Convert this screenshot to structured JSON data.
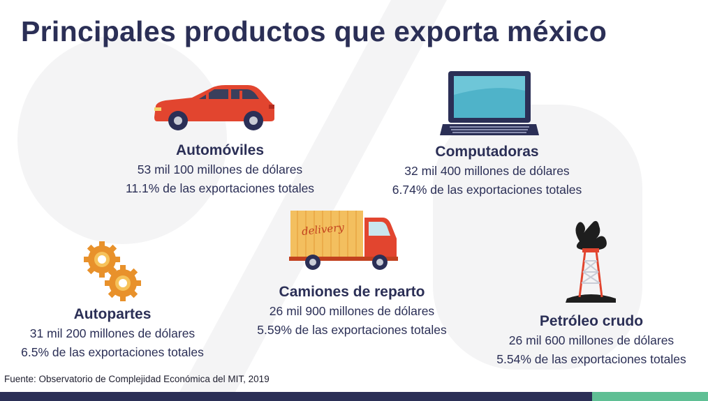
{
  "title": "Principales productos que exporta méxico",
  "products": [
    {
      "name": "Automóviles",
      "value": "53 mil 100 millones de dólares",
      "share": "11.1% de las exportaciones totales",
      "icon": "car-icon"
    },
    {
      "name": "Computadoras",
      "value": "32 mil 400 millones de dólares",
      "share": "6.74% de las exportaciones totales",
      "icon": "laptop-icon"
    },
    {
      "name": "Autopartes",
      "value": "31 mil 200 millones de dólares",
      "share": "6.5% de las exportaciones totales",
      "icon": "gears-icon"
    },
    {
      "name": "Camiones de reparto",
      "value": "26 mil 900 millones de dólares",
      "share": "5.59% de las exportaciones totales",
      "icon": "delivery-truck-icon",
      "truck_text": "delivery"
    },
    {
      "name": "Petróleo crudo",
      "value": "26 mil 600 millones de dólares",
      "share": "5.54% de las exportaciones totales",
      "icon": "oil-rig-icon"
    }
  ],
  "source": "Fuente: Observatorio de Complejidad Económica del MIT, 2019",
  "colors": {
    "navy": "#2b2f56",
    "accent_green": "#5fbf94",
    "car_red": "#e2452f",
    "screen_blue": "#4fb3c9",
    "gear_orange": "#e8912b",
    "truck_yellow": "#f3bf5f"
  }
}
